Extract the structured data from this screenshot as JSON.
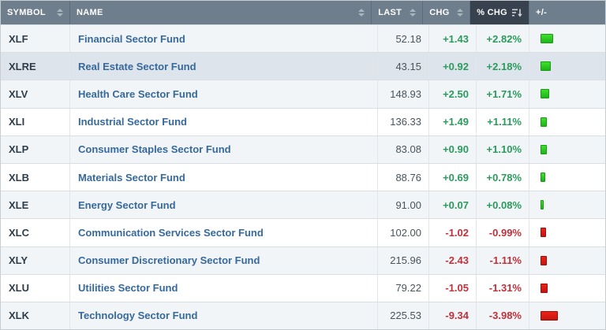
{
  "table": {
    "columns": [
      {
        "key": "symbol",
        "label": "SYMBOL",
        "sort": "none"
      },
      {
        "key": "name",
        "label": "NAME",
        "sort": "none"
      },
      {
        "key": "last",
        "label": "LAST",
        "sort": "none"
      },
      {
        "key": "chg",
        "label": "CHG",
        "sort": "none"
      },
      {
        "key": "pct",
        "label": "% CHG",
        "sort": "desc"
      },
      {
        "key": "bar",
        "label": "+/-",
        "sort": null
      }
    ],
    "rows": [
      {
        "symbol": "XLF",
        "name": "Financial Sector Fund",
        "last": "52.18",
        "chg": "+1.43",
        "pct": "+2.82%",
        "pct_value": 2.82,
        "direction": "up",
        "highlight": false
      },
      {
        "symbol": "XLRE",
        "name": "Real Estate Sector Fund",
        "last": "43.15",
        "chg": "+0.92",
        "pct": "+2.18%",
        "pct_value": 2.18,
        "direction": "up",
        "highlight": true
      },
      {
        "symbol": "XLV",
        "name": "Health Care Sector Fund",
        "last": "148.93",
        "chg": "+2.50",
        "pct": "+1.71%",
        "pct_value": 1.71,
        "direction": "up",
        "highlight": false
      },
      {
        "symbol": "XLI",
        "name": "Industrial Sector Fund",
        "last": "136.33",
        "chg": "+1.49",
        "pct": "+1.11%",
        "pct_value": 1.11,
        "direction": "up",
        "highlight": false
      },
      {
        "symbol": "XLP",
        "name": "Consumer Staples Sector Fund",
        "last": "83.08",
        "chg": "+0.90",
        "pct": "+1.10%",
        "pct_value": 1.1,
        "direction": "up",
        "highlight": false
      },
      {
        "symbol": "XLB",
        "name": "Materials Sector Fund",
        "last": "88.76",
        "chg": "+0.69",
        "pct": "+0.78%",
        "pct_value": 0.78,
        "direction": "up",
        "highlight": false
      },
      {
        "symbol": "XLE",
        "name": "Energy Sector Fund",
        "last": "91.00",
        "chg": "+0.07",
        "pct": "+0.08%",
        "pct_value": 0.08,
        "direction": "up",
        "highlight": false
      },
      {
        "symbol": "XLC",
        "name": "Communication Services Sector Fund",
        "last": "102.00",
        "chg": "-1.02",
        "pct": "-0.99%",
        "pct_value": 0.99,
        "direction": "down",
        "highlight": false
      },
      {
        "symbol": "XLY",
        "name": "Consumer Discretionary Sector Fund",
        "last": "215.96",
        "chg": "-2.43",
        "pct": "-1.11%",
        "pct_value": 1.11,
        "direction": "down",
        "highlight": false
      },
      {
        "symbol": "XLU",
        "name": "Utilities Sector Fund",
        "last": "79.22",
        "chg": "-1.05",
        "pct": "-1.31%",
        "pct_value": 1.31,
        "direction": "down",
        "highlight": false
      },
      {
        "symbol": "XLK",
        "name": "Technology Sector Fund",
        "last": "225.53",
        "chg": "-9.34",
        "pct": "-3.98%",
        "pct_value": 3.98,
        "direction": "down",
        "highlight": false
      }
    ]
  },
  "icons": {
    "unsorted": "sort-updown-icon",
    "sorted_desc": "sort-descending-icon"
  },
  "colors": {
    "positive_text": "#2a9b5d",
    "negative_text": "#c2303a",
    "bar_positive": "#2bd41f",
    "bar_negative": "#df1610",
    "header_bg": "#6f7e8c",
    "header_sorted_bg": "#37424e",
    "link": "#36699c",
    "highlight_row_bg": "#dee4eb",
    "zebra_row_bg": "#f1f5f7"
  }
}
